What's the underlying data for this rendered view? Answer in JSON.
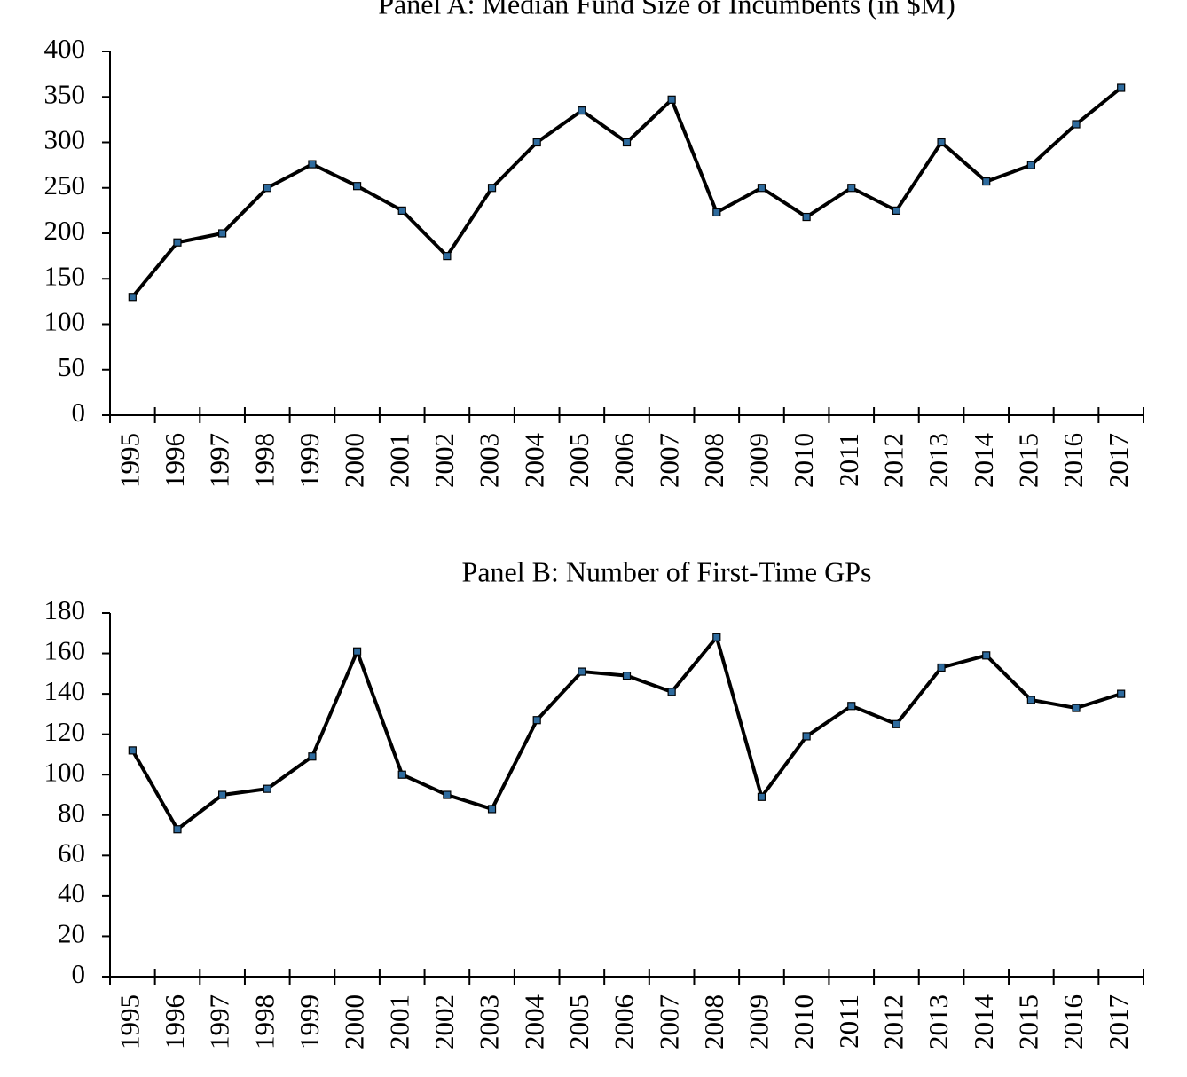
{
  "chart_data": [
    {
      "type": "line",
      "title": "Panel A: Median Fund Size of Incumbents (in $M)",
      "categories": [
        "1995",
        "1996",
        "1997",
        "1998",
        "1999",
        "2000",
        "2001",
        "2002",
        "2003",
        "2004",
        "2005",
        "2006",
        "2007",
        "2008",
        "2009",
        "2010",
        "2011",
        "2012",
        "2013",
        "2014",
        "2015",
        "2016",
        "2017"
      ],
      "values": [
        130,
        190,
        200,
        250,
        276,
        252,
        225,
        175,
        250,
        300,
        335,
        300,
        347,
        223,
        250,
        218,
        250,
        225,
        300,
        257,
        275,
        320,
        360
      ],
      "color": "#000000",
      "marker_color": "#2e6b9e",
      "ylim": [
        0,
        400
      ],
      "yticks": [
        0,
        50,
        100,
        150,
        200,
        250,
        300,
        350,
        400
      ]
    },
    {
      "type": "line",
      "title": "Panel B: Number of First-Time GPs",
      "categories": [
        "1995",
        "1996",
        "1997",
        "1998",
        "1999",
        "2000",
        "2001",
        "2002",
        "2003",
        "2004",
        "2005",
        "2006",
        "2007",
        "2008",
        "2009",
        "2010",
        "2011",
        "2012",
        "2013",
        "2014",
        "2015",
        "2016",
        "2017"
      ],
      "values": [
        112,
        73,
        90,
        93,
        109,
        161,
        100,
        90,
        83,
        127,
        151,
        149,
        141,
        168,
        89,
        119,
        134,
        125,
        153,
        159,
        137,
        133,
        140
      ],
      "color": "#000000",
      "marker_color": "#2e6b9e",
      "ylim": [
        0,
        180
      ],
      "yticks": [
        0,
        20,
        40,
        60,
        80,
        100,
        120,
        140,
        160,
        180
      ]
    }
  ]
}
